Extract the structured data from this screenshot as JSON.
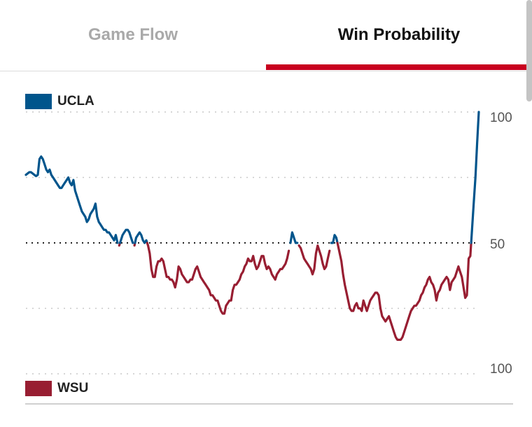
{
  "tabs": {
    "game_flow": "Game Flow",
    "win_probability": "Win Probability"
  },
  "colors": {
    "ucla": "#00558c",
    "wsu": "#981e32",
    "accent": "#c8001e"
  },
  "chart_data": {
    "type": "line",
    "legend": {
      "top": "UCLA",
      "bottom": "WSU"
    },
    "axis_labels": {
      "top": "100",
      "middle": "50",
      "bottom": "100"
    },
    "ylim": [
      0,
      100
    ],
    "midline": 50,
    "grid": true,
    "series": [
      {
        "name": "UCLA",
        "values": [
          76,
          76.5,
          77,
          77,
          76.5,
          76,
          75.5,
          76,
          82,
          83,
          82,
          80,
          78,
          77,
          78,
          76,
          75,
          74,
          73,
          72,
          71,
          71,
          72,
          73,
          74,
          75,
          73,
          72,
          74,
          70,
          68,
          66,
          64,
          62,
          61,
          60,
          58,
          59,
          61,
          62,
          63,
          65,
          60,
          58,
          57,
          56,
          55,
          55,
          54,
          54,
          53,
          52,
          51,
          53,
          50,
          49,
          51,
          53,
          54,
          55,
          55,
          54,
          52,
          50,
          49,
          52,
          53,
          54,
          53,
          51,
          50,
          51,
          49,
          46,
          40,
          37,
          37,
          41,
          43,
          43,
          44,
          43,
          40,
          37,
          37,
          36,
          36,
          35,
          33,
          36,
          41,
          40,
          38,
          37,
          36,
          35,
          35,
          36,
          36,
          38,
          40,
          41,
          39,
          37,
          36,
          35,
          34,
          33,
          32,
          30,
          30,
          29,
          28,
          28,
          26,
          24,
          23,
          23,
          26,
          27,
          28,
          28,
          32,
          34,
          34,
          35,
          36,
          38,
          39,
          41,
          42,
          44,
          43,
          43,
          45,
          42,
          40,
          41,
          43,
          45,
          45,
          42,
          40,
          41,
          40,
          38,
          37,
          36,
          38,
          39,
          40,
          40,
          41,
          42,
          44,
          47,
          50,
          54,
          52,
          50,
          50,
          49,
          48,
          46,
          44,
          43,
          42,
          41,
          40,
          38,
          40,
          46,
          49,
          47,
          45,
          42,
          40,
          41,
          44,
          47,
          50,
          50,
          53,
          52,
          49,
          46,
          43,
          38,
          34,
          31,
          28,
          25,
          24,
          24,
          26,
          27,
          25,
          25,
          24,
          28,
          26,
          24,
          26,
          28,
          29,
          30,
          31,
          31,
          30,
          25,
          22,
          21,
          20,
          21,
          22,
          20,
          18,
          16,
          14,
          13,
          13,
          13,
          14,
          16,
          18,
          20,
          22,
          24,
          25,
          26,
          26,
          27,
          28,
          30,
          31,
          33,
          34,
          36,
          37,
          35,
          34,
          32,
          28,
          31,
          32,
          34,
          35,
          36,
          37,
          36,
          32,
          35,
          36,
          37,
          39,
          41,
          39,
          37,
          33,
          29,
          30,
          44,
          45,
          55,
          65,
          75,
          88,
          100
        ]
      }
    ]
  }
}
